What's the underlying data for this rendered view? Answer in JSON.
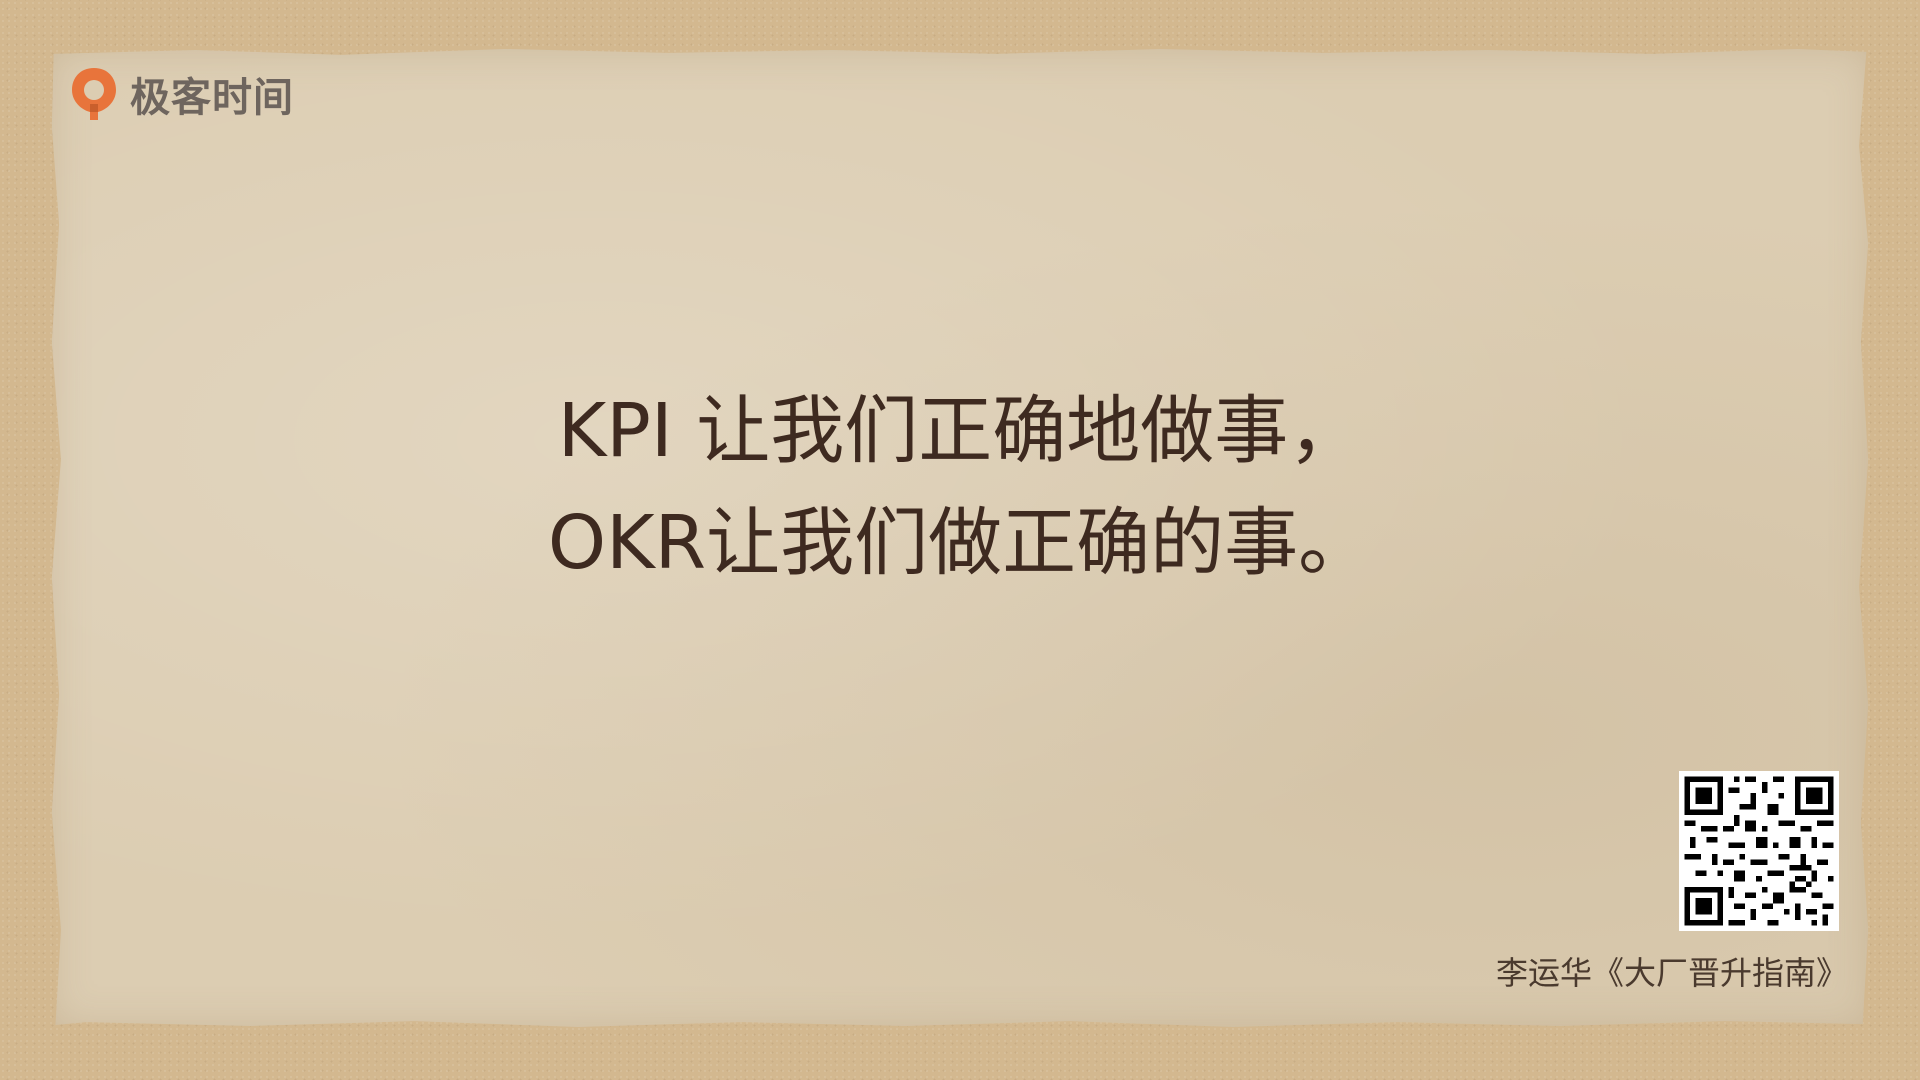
{
  "brand": {
    "logo_icon": "geektime-logo-icon",
    "name": "极客时间",
    "accent_color": "#e8743b"
  },
  "quote": {
    "line1": "KPI 让我们正确地做事，",
    "line2": "OKR让我们做正确的事。"
  },
  "qr_code": {
    "icon": "qr-code-icon"
  },
  "caption": {
    "text": "李运华《大厂晋升指南》"
  },
  "colors": {
    "background": "#d3b88f",
    "paper": "#dccdb2",
    "text": "#3e2a20"
  }
}
